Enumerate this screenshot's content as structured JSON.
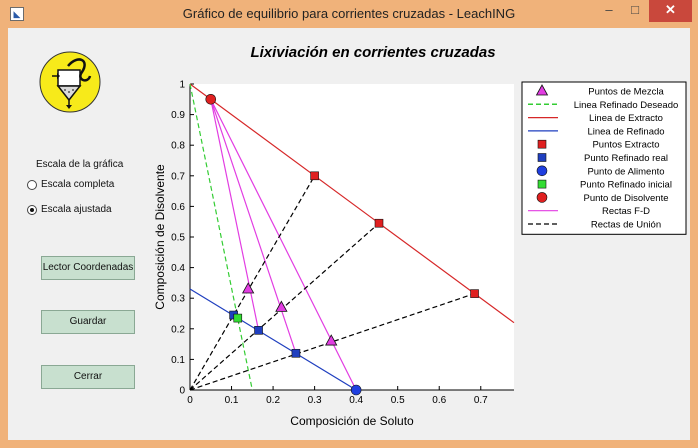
{
  "window": {
    "title": "Gráfico de equilibrio para corrientes cruzadas - LeachING",
    "minimize": "–",
    "maximize": "□",
    "close": "✕"
  },
  "sidebar": {
    "scale_label": "Escala de la gráfica",
    "scale_full": "Escala completa",
    "scale_adjusted": "Escala ajustada",
    "selected_scale": "Escala ajustada",
    "buttons": {
      "coord_reader": "Lector Coordenadas",
      "save": "Guardar",
      "close": "Cerrar"
    }
  },
  "colors": {
    "extract_line": "#d62728",
    "raffinate_line": "#1f3fbf",
    "fd_lines": "#e23de2",
    "tie_lines": "#000000",
    "desired_raffinate": "#33cc33",
    "logo_fill": "#f7ea1a"
  },
  "chart_data": {
    "type": "scatter",
    "title": "Lixiviación en corrientes cruzadas",
    "xlabel": "Composición de Soluto",
    "ylabel": "Composición de Disolvente",
    "xlim": [
      0,
      0.78
    ],
    "ylim": [
      0,
      1
    ],
    "xticks": [
      "0",
      "0.1",
      "0.2",
      "0.3",
      "0.4",
      "0.5",
      "0.6",
      "0.7"
    ],
    "yticks": [
      "0",
      "0.1",
      "0.2",
      "0.3",
      "0.4",
      "0.5",
      "0.6",
      "0.7",
      "0.8",
      "0.9",
      "1"
    ],
    "legend_position": "top-right",
    "legend": [
      "Puntos de Mezcla",
      "Linea Refinado Deseado",
      "Linea de Extracto",
      "Linea de Refinado",
      "Puntos Extracto",
      "Punto Refinado real",
      "Punto de Alimento",
      "Punto Refinado inicial",
      "Punto de Disolvente",
      "Rectas F-D",
      "Rectas de Unión"
    ],
    "extract_line": {
      "x": [
        0,
        0.78
      ],
      "y": [
        1,
        0.22
      ]
    },
    "raffinate_line": {
      "x": [
        0,
        0.4
      ],
      "y": [
        0.33,
        0
      ]
    },
    "desired_raffinate_line": {
      "x": [
        0,
        0.15
      ],
      "y": [
        1,
        0
      ]
    },
    "solvent_point": {
      "x": 0.05,
      "y": 0.95
    },
    "feed_point": {
      "x": 0.4,
      "y": 0
    },
    "mixing_points": [
      {
        "x": 0.14,
        "y": 0.33
      },
      {
        "x": 0.22,
        "y": 0.27
      },
      {
        "x": 0.34,
        "y": 0.16
      }
    ],
    "extract_points": [
      {
        "x": 0.3,
        "y": 0.7
      },
      {
        "x": 0.455,
        "y": 0.545
      },
      {
        "x": 0.685,
        "y": 0.315
      }
    ],
    "raffinate_points": [
      {
        "x": 0.105,
        "y": 0.245
      },
      {
        "x": 0.165,
        "y": 0.195
      },
      {
        "x": 0.255,
        "y": 0.12
      }
    ],
    "initial_raffinate_point": {
      "x": 0.115,
      "y": 0.235
    },
    "fd_lines": [
      {
        "x": [
          0.05,
          0.4
        ],
        "y": [
          0.95,
          0
        ]
      },
      {
        "x": [
          0.05,
          0.255
        ],
        "y": [
          0.95,
          0.12
        ]
      },
      {
        "x": [
          0.05,
          0.165
        ],
        "y": [
          0.95,
          0.195
        ]
      }
    ],
    "tie_lines": [
      {
        "x": [
          0,
          0.3
        ],
        "y": [
          0,
          0.7
        ]
      },
      {
        "x": [
          0,
          0.455
        ],
        "y": [
          0,
          0.545
        ]
      },
      {
        "x": [
          0,
          0.685
        ],
        "y": [
          0,
          0.315
        ]
      }
    ]
  }
}
